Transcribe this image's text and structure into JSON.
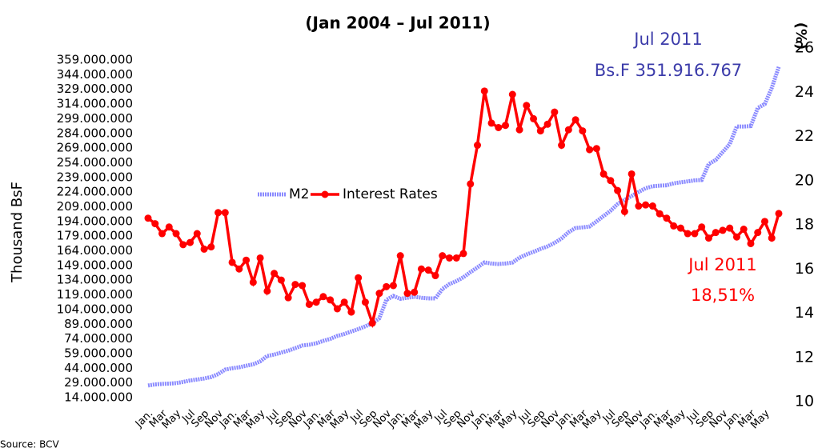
{
  "chart_data": {
    "type": "line",
    "subtitle": "(Jan 2004 – Jul 2011)",
    "y_label": "Thousand  BsF",
    "y2_label": "(%)",
    "source": "Source: BCV",
    "annotations": [
      "Jul 2011",
      "Bs.F 351.916.767",
      "Jul 2011",
      "18,51%"
    ],
    "categories": [
      "Jan.",
      null,
      "Mar",
      null,
      "May",
      null,
      "Jul",
      null,
      "Sep",
      null,
      "Nov",
      null,
      "Jan.",
      null,
      "Mar",
      null,
      "May",
      null,
      "Jul",
      null,
      "Sep",
      null,
      "Nov",
      null,
      "Jan.",
      null,
      "Mar",
      null,
      "May",
      null,
      "Jul",
      null,
      "Sep",
      null,
      "Nov",
      null,
      "Jan.",
      null,
      "Mar",
      null,
      "May",
      null,
      "Jul",
      null,
      "Sep",
      null,
      "Nov",
      null,
      "Jan.",
      null,
      "Mar",
      null,
      "May",
      null,
      "Jul",
      null,
      "Sep",
      null,
      "Nov",
      null,
      "Jan.",
      null,
      "Mar",
      null,
      "May",
      null,
      "Jul",
      null,
      "Sep",
      null,
      "Nov",
      null,
      "Jan.",
      null,
      "Mar",
      null,
      "May",
      null,
      "Jul",
      null,
      "Sep",
      null,
      "Nov",
      null,
      "Jan.",
      null,
      "Mar",
      null,
      "May",
      null,
      null
    ],
    "series": [
      {
        "name": "M2",
        "color": "#8a8aff",
        "axis": "y",
        "values": [
          26300000,
          27500000,
          28000000,
          28300000,
          28800000,
          30000000,
          31500000,
          32500000,
          33500000,
          35000000,
          38000000,
          42600000,
          44000000,
          45000000,
          46500000,
          48000000,
          51000000,
          56500000,
          58000000,
          60000000,
          62000000,
          64500000,
          67200000,
          68000000,
          69500000,
          72000000,
          74000000,
          77000000,
          79000000,
          81500000,
          84000000,
          86800000,
          90000000,
          95000000,
          113800000,
          117900000,
          115000000,
          116000000,
          117000000,
          116000000,
          115400000,
          115400000,
          125000000,
          130000000,
          133000000,
          137000000,
          142300000,
          147000000,
          152200000,
          151000000,
          150500000,
          151000000,
          152000000,
          157000000,
          160300000,
          163000000,
          166000000,
          168500000,
          172000000,
          176700000,
          183000000,
          187300000,
          188000000,
          188900000,
          194000000,
          199600000,
          205000000,
          211800000,
          216000000,
          220000000,
          224100000,
          228000000,
          230000000,
          230600000,
          231000000,
          233000000,
          234000000,
          235000000,
          236000000,
          236400000,
          252700000,
          256800000,
          265000000,
          273100000,
          291100000,
          291000000,
          291500000,
          310000000,
          314000000,
          330400000,
          351916767
        ]
      },
      {
        "name": "Interest Rates",
        "color": "#ff0000",
        "axis": "y2",
        "values": [
          18.3,
          18.05,
          17.6,
          17.9,
          17.6,
          17.1,
          17.2,
          17.6,
          16.9,
          17.0,
          18.55,
          18.55,
          16.3,
          16.0,
          16.4,
          15.4,
          16.5,
          15.0,
          15.8,
          15.5,
          14.7,
          15.3,
          15.25,
          14.4,
          14.5,
          14.75,
          14.6,
          14.2,
          14.5,
          14.05,
          15.6,
          14.5,
          13.55,
          14.9,
          15.2,
          15.25,
          16.6,
          14.9,
          14.95,
          16.0,
          15.95,
          15.7,
          16.6,
          16.5,
          16.5,
          16.7,
          19.85,
          21.6,
          24.05,
          22.6,
          22.4,
          22.5,
          23.9,
          22.3,
          23.4,
          22.8,
          22.25,
          22.55,
          23.1,
          21.6,
          22.3,
          22.75,
          22.25,
          21.4,
          21.45,
          20.3,
          20.0,
          19.55,
          18.6,
          20.3,
          18.85,
          18.9,
          18.85,
          18.5,
          18.3,
          17.95,
          17.85,
          17.6,
          17.6,
          17.9,
          17.4,
          17.65,
          17.75,
          17.85,
          17.45,
          17.8,
          17.15,
          17.65,
          18.15,
          17.4,
          18.51
        ]
      }
    ],
    "ylim": [
      9900000,
      371300000
    ],
    "yticks": [
      {
        "value": 14000000,
        "label": "14.000.000"
      },
      {
        "value": 29000000,
        "label": "29.000.000"
      },
      {
        "value": 44000000,
        "label": "44.000.000"
      },
      {
        "value": 59000000,
        "label": "59.000.000"
      },
      {
        "value": 74000000,
        "label": "74.000.000"
      },
      {
        "value": 89000000,
        "label": "89.000.000"
      },
      {
        "value": 104000000,
        "label": "104.000.000"
      },
      {
        "value": 119000000,
        "label": "119.000.000"
      },
      {
        "value": 134000000,
        "label": "134.000.000"
      },
      {
        "value": 149000000,
        "label": "149.000.000"
      },
      {
        "value": 164000000,
        "label": "164.000.000"
      },
      {
        "value": 179000000,
        "label": "179.000.000"
      },
      {
        "value": 194000000,
        "label": "194.000.000"
      },
      {
        "value": 209000000,
        "label": "209.000.000"
      },
      {
        "value": 224000000,
        "label": "224.000.000"
      },
      {
        "value": 239000000,
        "label": "239.000.000"
      },
      {
        "value": 254000000,
        "label": "254.000.000"
      },
      {
        "value": 269000000,
        "label": "269.000.000"
      },
      {
        "value": 284000000,
        "label": "284.000.000"
      },
      {
        "value": 299000000,
        "label": "299.000.000"
      },
      {
        "value": 314000000,
        "label": "314.000.000"
      },
      {
        "value": 329000000,
        "label": "329.000.000"
      },
      {
        "value": 344000000,
        "label": "344.000.000"
      },
      {
        "value": 359000000,
        "label": "359.000.000"
      }
    ],
    "y2lim": [
      10,
      26
    ],
    "y2ticks": [
      10,
      12,
      14,
      16,
      18,
      20,
      22,
      24,
      26
    ],
    "grid": false
  }
}
